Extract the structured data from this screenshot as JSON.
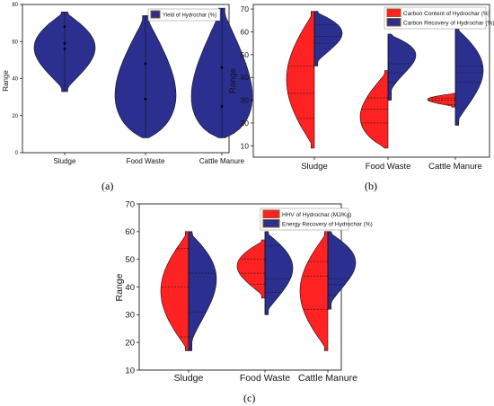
{
  "panels": {
    "a": "(a)",
    "b": "(b)",
    "c": "(c)"
  },
  "colors": {
    "navy": "#2b2f8f",
    "red": "#ff2222",
    "legend_swatch_a": "#2b2f8f",
    "legend_swatch_brown": "#8b5a2b"
  },
  "chart_data": [
    {
      "type": "violin",
      "id": "a",
      "title": "",
      "xlabel": "",
      "ylabel": "Range",
      "ylim": [
        0,
        80
      ],
      "yticks": [
        0,
        20,
        40,
        60,
        80
      ],
      "categories": [
        "Sludge",
        "Food Waste",
        "Cattle Manure"
      ],
      "legend": {
        "position": "top-right",
        "entries": [
          "Yield of Hydrochar (%)"
        ]
      },
      "series": [
        {
          "name": "Yield of Hydrochar (%)",
          "color": "#2b2f8f",
          "values": [
            {
              "min": 33,
              "max": 76,
              "points": [
                68,
                59,
                56
              ]
            },
            {
              "min": 8,
              "max": 74,
              "points": [
                48,
                29
              ]
            },
            {
              "min": 8,
              "max": 78,
              "points": [
                46,
                25
              ]
            }
          ]
        }
      ]
    },
    {
      "type": "split-violin",
      "id": "b",
      "title": "",
      "xlabel": "",
      "ylabel": "Range",
      "ylim": [
        5,
        72
      ],
      "yticks": [
        10,
        20,
        30,
        40,
        50,
        60,
        70
      ],
      "categories": [
        "Sludge",
        "Food Waste",
        "Cattle Manure"
      ],
      "legend": {
        "position": "top-right",
        "entries": [
          "Carbon Content of Hydrochar (%)",
          "Carbon Recovery of Hydrochar (%)"
        ]
      },
      "series": [
        {
          "name": "Carbon Content of Hydrochar (%)",
          "side": "left",
          "color": "#ff2222",
          "values": [
            {
              "min": 9,
              "max": 69,
              "quartiles": [
                22,
                33,
                45
              ]
            },
            {
              "min": 9,
              "max": 43,
              "quartiles": [
                20,
                26,
                31
              ]
            },
            {
              "min": 27,
              "max": 33,
              "quartiles": [
                28,
                30,
                31
              ]
            }
          ]
        },
        {
          "name": "Carbon Recovery of Hydrochar (%)",
          "side": "right",
          "color": "#2b2f8f",
          "values": [
            {
              "min": 45,
              "max": 69,
              "quartiles": [
                55,
                58,
                63
              ]
            },
            {
              "min": 30,
              "max": 59,
              "quartiles": [
                38,
                42,
                46
              ]
            },
            {
              "min": 19,
              "max": 62,
              "quartiles": [
                38,
                42,
                45
              ]
            }
          ]
        }
      ]
    },
    {
      "type": "split-violin",
      "id": "c",
      "title": "",
      "xlabel": "",
      "ylabel": "Range",
      "ylim": [
        10,
        70
      ],
      "yticks": [
        10,
        20,
        30,
        40,
        50,
        60,
        70
      ],
      "categories": [
        "Sludge",
        "Food Waste",
        "Cattle Manure"
      ],
      "legend": {
        "position": "top-right",
        "entries": [
          "HHV of Hydrochar (MJ/Kg)",
          "Energy Recovery of Hydrochar (%)"
        ]
      },
      "series": [
        {
          "name": "HHV of Hydrochar (MJ/Kg)",
          "side": "left",
          "color": "#ff2222",
          "values": [
            {
              "min": 17,
              "max": 60,
              "quartiles": [
                22,
                40,
                54
              ]
            },
            {
              "min": 36,
              "max": 57,
              "quartiles": [
                41,
                45,
                50
              ]
            },
            {
              "min": 17,
              "max": 60,
              "quartiles": [
                32,
                44,
                49
              ]
            }
          ]
        },
        {
          "name": "Energy Recovery of Hydrochar (%)",
          "side": "right",
          "color": "#2b2f8f",
          "values": [
            {
              "min": 17,
              "max": 60,
              "quartiles": [
                22,
                31,
                45
              ]
            },
            {
              "min": 30,
              "max": 60,
              "quartiles": [
                38,
                43,
                55
              ]
            },
            {
              "min": 32,
              "max": 60,
              "quartiles": [
                37,
                41,
                43
              ]
            }
          ]
        }
      ]
    }
  ]
}
